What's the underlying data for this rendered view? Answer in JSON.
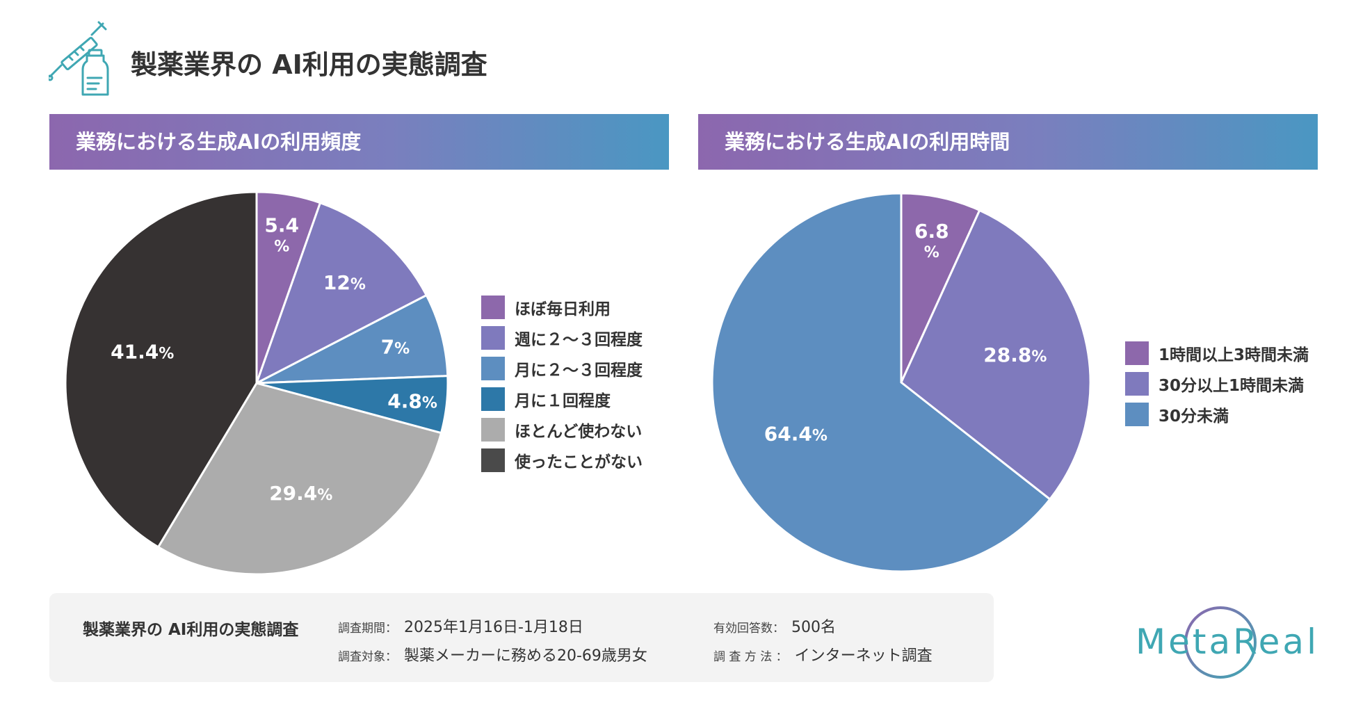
{
  "page": {
    "title": "製薬業界の AI利用の実態調査",
    "colors": {
      "gradient_start": "#8c67ae",
      "gradient_end": "#4a97c2",
      "brand_teal": "#3fa7b3",
      "brand_purple": "#8c67ae"
    }
  },
  "chart_data": [
    {
      "type": "pie",
      "title": "業務における生成AIの利用頻度",
      "unit": "%",
      "slices": [
        {
          "label": "ほぼ毎日利用",
          "value": 5.4,
          "color": "#8d68ab",
          "display": "5.4"
        },
        {
          "label": "週に２～３回程度",
          "value": 12,
          "color": "#7f7abd",
          "display": "12"
        },
        {
          "label": "月に２～３回程度",
          "value": 7,
          "color": "#5d8ec0",
          "display": "7"
        },
        {
          "label": "月に１回程度",
          "value": 4.8,
          "color": "#2d78a8",
          "display": "4.8"
        },
        {
          "label": "ほとんど使わない",
          "value": 29.4,
          "color": "#acacac",
          "display": "29.4"
        },
        {
          "label": "使ったことがない",
          "value": 41.4,
          "color": "#363232",
          "display": "41.4"
        }
      ],
      "legend": [
        {
          "label": "ほぼ毎日利用",
          "color": "#8d68ab"
        },
        {
          "label": "週に２～３回程度",
          "color": "#7f7abd"
        },
        {
          "label": "月に２～３回程度",
          "color": "#5d8ec0"
        },
        {
          "label": "月に１回程度",
          "color": "#2d78a8"
        },
        {
          "label": "ほとんど使わない",
          "color": "#acacac"
        },
        {
          "label": "使ったことがない",
          "color": "#4a4a4a"
        }
      ]
    },
    {
      "type": "pie",
      "title": "業務における生成AIの利用時間",
      "unit": "%",
      "slices": [
        {
          "label": "1時間以上3時間未満",
          "value": 6.8,
          "color": "#8d68ab",
          "display": "6.8"
        },
        {
          "label": "30分以上1時間未満",
          "value": 28.8,
          "color": "#7f7abd",
          "display": "28.8"
        },
        {
          "label": "30分未満",
          "value": 64.4,
          "color": "#5d8ec0",
          "display": "64.4"
        }
      ],
      "legend": [
        {
          "label": "1時間以上3時間未満",
          "color": "#8d68ab"
        },
        {
          "label": "30分以上1時間未満",
          "color": "#7f7abd"
        },
        {
          "label": "30分未満",
          "color": "#5d8ec0"
        }
      ]
    }
  ],
  "footer": {
    "title": "製薬業界の AI利用の実態調査",
    "period_label": "調査期間：",
    "period_value": "2025年1月16日-1月18日",
    "target_label": "調査対象：",
    "target_value": "製薬メーカーに務める20-69歳男女",
    "responses_label": "有効回答数：",
    "responses_value": "500名",
    "method_label": "調 査 方 法 ：",
    "method_value": "インターネット調査"
  },
  "brand": {
    "name": "MetaReal"
  }
}
